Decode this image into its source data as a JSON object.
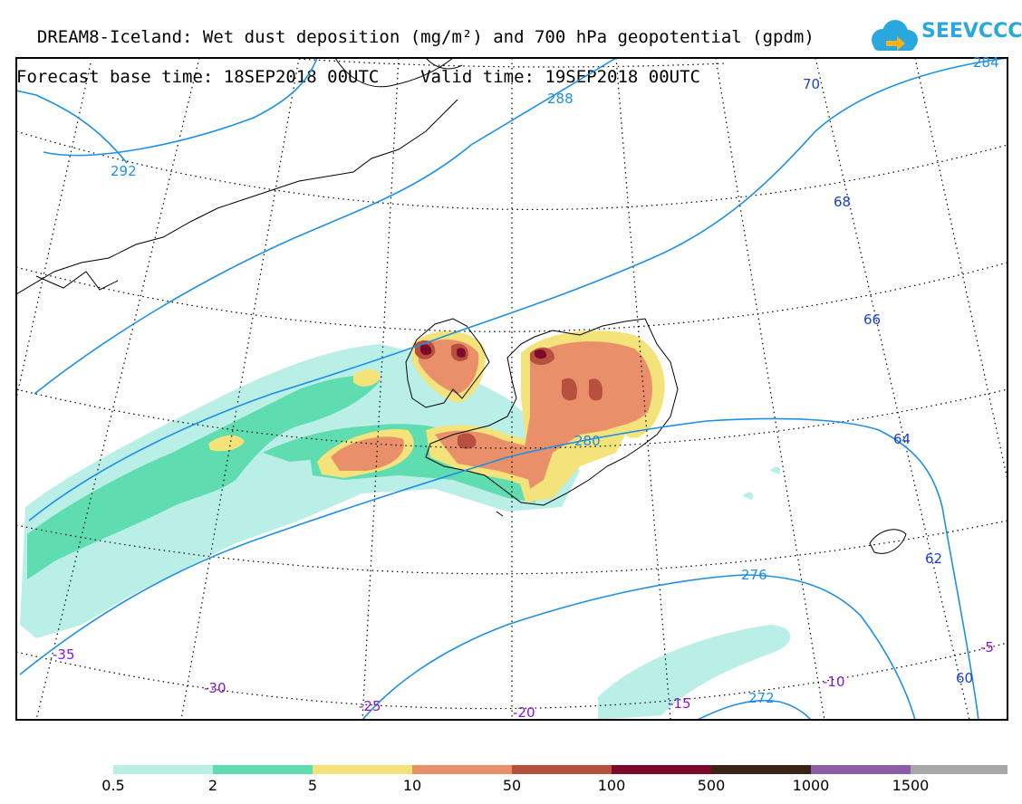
{
  "title": {
    "line1": "DREAM8-Iceland: Wet dust deposition (mg/m²) and 700 hPa geopotential (gpdm)",
    "line2": "Forecast base time: 18SEP2018 00UTC    Valid time: 19SEP2018 00UTC"
  },
  "logo": {
    "text": "SEEVCCC",
    "icon": "cloud-arrow-icon",
    "color": "#29a8e0"
  },
  "latitude_labels": [
    "70",
    "68",
    "66",
    "64",
    "62",
    "60"
  ],
  "longitude_labels": [
    "-35",
    "-30",
    "-25",
    "-20",
    "-15",
    "-10",
    "-5"
  ],
  "contour_labels": [
    "292",
    "288",
    "284",
    "280",
    "276",
    "272"
  ],
  "colorbar": {
    "ticks": [
      "0.5",
      "2",
      "5",
      "10",
      "50",
      "100",
      "500",
      "1000",
      "1500"
    ],
    "colors": [
      "#b9efe6",
      "#5fdcb0",
      "#f4e27a",
      "#e9906a",
      "#b8503f",
      "#7d0a2a",
      "#3a2314",
      "#8c5ea8",
      "#a8a8a8"
    ]
  }
}
